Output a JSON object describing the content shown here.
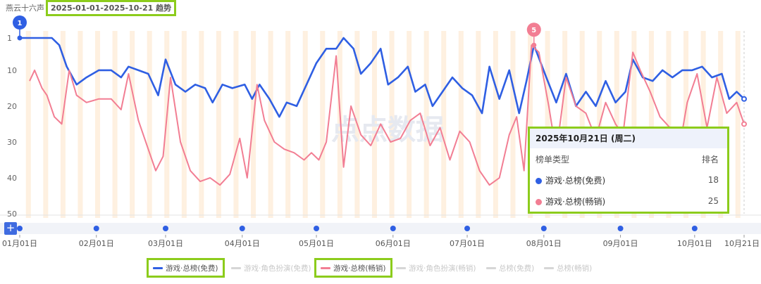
{
  "header": {
    "app_name": "燕云十六声",
    "date_range": "2025-01-01-2025-10-21 趋势"
  },
  "watermark": "点点数据",
  "tooltip": {
    "date": "2025年10月21日 (周二)",
    "col_type": "榜单类型",
    "col_rank": "排名",
    "rows": [
      {
        "label": "游戏·总榜(免费)",
        "value": "18",
        "color": "#2f5fe3"
      },
      {
        "label": "游戏·总榜(畅销)",
        "value": "25",
        "color": "#f27e93"
      }
    ]
  },
  "zoom_button": "+",
  "markers": [
    {
      "label": "1",
      "date_index": 0,
      "color": "#2f5fe3"
    },
    {
      "label": "5",
      "date_index": 200,
      "color": "#f27e93"
    }
  ],
  "legend": [
    {
      "label": "游戏·总榜(免费)",
      "color": "#2f5fe3",
      "active": true
    },
    {
      "label": "游戏·角色扮演(免费)",
      "color": "#d6d6d6",
      "active": false
    },
    {
      "label": "游戏·总榜(畅销)",
      "color": "#f27e93",
      "active": true
    },
    {
      "label": "游戏·角色扮演(畅销)",
      "color": "#d6d6d6",
      "active": false
    },
    {
      "label": "总榜(免费)",
      "color": "#d6d6d6",
      "active": false
    },
    {
      "label": "总榜(畅销)",
      "color": "#d6d6d6",
      "active": false
    }
  ],
  "chart_data": {
    "type": "line",
    "title": "",
    "x_start": "2025-01-01",
    "x_end": "2025-10-21",
    "x_tick_labels": [
      "01月01日",
      "02月01日",
      "03月01日",
      "04月01日",
      "05月01日",
      "06月01日",
      "07月01日",
      "08月01日",
      "09月01日",
      "10月01日",
      "10月21日"
    ],
    "x_tick_dates": [
      "2025-01-01",
      "2025-02-01",
      "2025-03-01",
      "2025-04-01",
      "2025-05-01",
      "2025-06-01",
      "2025-07-01",
      "2025-08-01",
      "2025-09-01",
      "2025-10-01",
      "2025-10-21"
    ],
    "y_tick_labels": [
      "1",
      "10",
      "20",
      "30",
      "40",
      "50"
    ],
    "y_ticks": [
      1,
      10,
      20,
      30,
      40,
      50
    ],
    "ylim": [
      1,
      50
    ],
    "y_inverted": true,
    "grid": false,
    "background_bands": "weekends",
    "series": [
      {
        "name": "游戏·总榜(免费)",
        "color": "#2f5fe3",
        "points": [
          [
            "2025-01-01",
            1
          ],
          [
            "2025-01-05",
            1
          ],
          [
            "2025-01-09",
            1
          ],
          [
            "2025-01-14",
            1
          ],
          [
            "2025-01-17",
            3
          ],
          [
            "2025-01-20",
            9
          ],
          [
            "2025-01-24",
            14
          ],
          [
            "2025-01-28",
            12
          ],
          [
            "2025-02-02",
            10
          ],
          [
            "2025-02-07",
            10
          ],
          [
            "2025-02-11",
            12
          ],
          [
            "2025-02-14",
            9
          ],
          [
            "2025-02-18",
            10
          ],
          [
            "2025-02-22",
            11
          ],
          [
            "2025-02-26",
            17
          ],
          [
            "2025-03-01",
            7
          ],
          [
            "2025-03-05",
            14
          ],
          [
            "2025-03-09",
            16
          ],
          [
            "2025-03-13",
            14
          ],
          [
            "2025-03-17",
            15
          ],
          [
            "2025-03-20",
            19
          ],
          [
            "2025-03-24",
            14
          ],
          [
            "2025-03-28",
            15
          ],
          [
            "2025-04-02",
            14
          ],
          [
            "2025-04-05",
            18
          ],
          [
            "2025-04-08",
            14
          ],
          [
            "2025-04-12",
            18
          ],
          [
            "2025-04-16",
            23
          ],
          [
            "2025-04-19",
            19
          ],
          [
            "2025-04-23",
            20
          ],
          [
            "2025-04-27",
            14
          ],
          [
            "2025-05-01",
            8
          ],
          [
            "2025-05-05",
            4
          ],
          [
            "2025-05-09",
            4
          ],
          [
            "2025-05-12",
            1
          ],
          [
            "2025-05-16",
            4
          ],
          [
            "2025-05-19",
            11
          ],
          [
            "2025-05-23",
            8
          ],
          [
            "2025-05-27",
            4
          ],
          [
            "2025-05-30",
            14
          ],
          [
            "2025-06-03",
            12
          ],
          [
            "2025-06-07",
            9
          ],
          [
            "2025-06-10",
            16
          ],
          [
            "2025-06-14",
            14
          ],
          [
            "2025-06-17",
            20
          ],
          [
            "2025-06-21",
            16
          ],
          [
            "2025-06-25",
            12
          ],
          [
            "2025-06-29",
            15
          ],
          [
            "2025-07-03",
            17
          ],
          [
            "2025-07-07",
            22
          ],
          [
            "2025-07-10",
            9
          ],
          [
            "2025-07-14",
            18
          ],
          [
            "2025-07-18",
            10
          ],
          [
            "2025-07-22",
            22
          ],
          [
            "2025-07-25",
            13
          ],
          [
            "2025-07-28",
            3
          ],
          [
            "2025-08-02",
            12
          ],
          [
            "2025-08-06",
            19
          ],
          [
            "2025-08-10",
            11
          ],
          [
            "2025-08-14",
            20
          ],
          [
            "2025-08-18",
            16
          ],
          [
            "2025-08-22",
            20
          ],
          [
            "2025-08-26",
            13
          ],
          [
            "2025-08-30",
            19
          ],
          [
            "2025-09-03",
            16
          ],
          [
            "2025-09-06",
            7
          ],
          [
            "2025-09-10",
            12
          ],
          [
            "2025-09-14",
            13
          ],
          [
            "2025-09-18",
            10
          ],
          [
            "2025-09-22",
            12
          ],
          [
            "2025-09-26",
            10
          ],
          [
            "2025-09-30",
            10
          ],
          [
            "2025-10-04",
            9
          ],
          [
            "2025-10-08",
            12
          ],
          [
            "2025-10-12",
            11
          ],
          [
            "2025-10-15",
            18
          ],
          [
            "2025-10-18",
            16
          ],
          [
            "2025-10-21",
            18
          ]
        ]
      },
      {
        "name": "游戏·总榜(畅销)",
        "color": "#f27e93",
        "points": [
          [
            "2025-01-05",
            13
          ],
          [
            "2025-01-07",
            10
          ],
          [
            "2025-01-10",
            15
          ],
          [
            "2025-01-12",
            17
          ],
          [
            "2025-01-15",
            23
          ],
          [
            "2025-01-18",
            25
          ],
          [
            "2025-01-21",
            10
          ],
          [
            "2025-01-24",
            17
          ],
          [
            "2025-01-28",
            19
          ],
          [
            "2025-02-02",
            18
          ],
          [
            "2025-02-07",
            18
          ],
          [
            "2025-02-11",
            21
          ],
          [
            "2025-02-14",
            11
          ],
          [
            "2025-02-18",
            24
          ],
          [
            "2025-02-22",
            32
          ],
          [
            "2025-02-25",
            38
          ],
          [
            "2025-02-28",
            34
          ],
          [
            "2025-03-03",
            12
          ],
          [
            "2025-03-07",
            30
          ],
          [
            "2025-03-11",
            38
          ],
          [
            "2025-03-15",
            41
          ],
          [
            "2025-03-19",
            40
          ],
          [
            "2025-03-23",
            42
          ],
          [
            "2025-03-27",
            39
          ],
          [
            "2025-03-31",
            29
          ],
          [
            "2025-04-03",
            40
          ],
          [
            "2025-04-07",
            14
          ],
          [
            "2025-04-10",
            24
          ],
          [
            "2025-04-14",
            30
          ],
          [
            "2025-04-18",
            32
          ],
          [
            "2025-04-22",
            33
          ],
          [
            "2025-04-26",
            35
          ],
          [
            "2025-04-29",
            33
          ],
          [
            "2025-05-02",
            35
          ],
          [
            "2025-05-05",
            30
          ],
          [
            "2025-05-09",
            6
          ],
          [
            "2025-05-12",
            37
          ],
          [
            "2025-05-15",
            20
          ],
          [
            "2025-05-19",
            28
          ],
          [
            "2025-05-23",
            31
          ],
          [
            "2025-05-27",
            25
          ],
          [
            "2025-05-31",
            30
          ],
          [
            "2025-06-04",
            29
          ],
          [
            "2025-06-08",
            24
          ],
          [
            "2025-06-12",
            22
          ],
          [
            "2025-06-16",
            31
          ],
          [
            "2025-06-20",
            26
          ],
          [
            "2025-06-24",
            35
          ],
          [
            "2025-06-28",
            27
          ],
          [
            "2025-07-02",
            30
          ],
          [
            "2025-07-06",
            38
          ],
          [
            "2025-07-10",
            42
          ],
          [
            "2025-07-14",
            40
          ],
          [
            "2025-07-18",
            28
          ],
          [
            "2025-07-21",
            23
          ],
          [
            "2025-07-24",
            38
          ],
          [
            "2025-07-27",
            3
          ],
          [
            "2025-07-30",
            5
          ],
          [
            "2025-08-03",
            20
          ],
          [
            "2025-08-06",
            33
          ],
          [
            "2025-08-10",
            12
          ],
          [
            "2025-08-14",
            20
          ],
          [
            "2025-08-18",
            22
          ],
          [
            "2025-08-22",
            29
          ],
          [
            "2025-08-26",
            19
          ],
          [
            "2025-08-30",
            25
          ],
          [
            "2025-09-02",
            28
          ],
          [
            "2025-09-06",
            5
          ],
          [
            "2025-09-09",
            10
          ],
          [
            "2025-09-13",
            16
          ],
          [
            "2025-09-17",
            23
          ],
          [
            "2025-09-21",
            26
          ],
          [
            "2025-09-25",
            31
          ],
          [
            "2025-09-28",
            19
          ],
          [
            "2025-10-02",
            11
          ],
          [
            "2025-10-06",
            26
          ],
          [
            "2025-10-10",
            12
          ],
          [
            "2025-10-14",
            22
          ],
          [
            "2025-10-18",
            19
          ],
          [
            "2025-10-21",
            25
          ]
        ]
      }
    ]
  }
}
